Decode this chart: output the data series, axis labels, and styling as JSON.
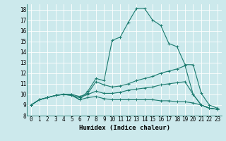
{
  "xlabel": "Humidex (Indice chaleur)",
  "bg_color": "#cce9ec",
  "grid_color": "#ffffff",
  "line_color": "#1a7a6e",
  "xlim": [
    -0.5,
    23.5
  ],
  "ylim": [
    8,
    18.5
  ],
  "xticks": [
    0,
    1,
    2,
    3,
    4,
    5,
    6,
    7,
    8,
    9,
    10,
    11,
    12,
    13,
    14,
    15,
    16,
    17,
    18,
    19,
    20,
    21,
    22,
    23
  ],
  "yticks": [
    8,
    9,
    10,
    11,
    12,
    13,
    14,
    15,
    16,
    17,
    18
  ],
  "lines": [
    {
      "x": [
        0,
        1,
        2,
        3,
        4,
        5,
        6,
        7,
        8,
        9,
        10,
        11,
        12,
        13,
        14,
        15,
        16,
        17,
        18,
        19,
        20,
        21,
        22,
        23
      ],
      "y": [
        9.0,
        9.5,
        9.7,
        9.9,
        10.0,
        10.0,
        9.5,
        10.3,
        11.5,
        11.3,
        15.1,
        15.4,
        16.8,
        18.1,
        18.1,
        17.0,
        16.5,
        14.8,
        14.5,
        12.8,
        12.8,
        10.1,
        9.0,
        8.7
      ]
    },
    {
      "x": [
        0,
        1,
        2,
        3,
        4,
        5,
        6,
        7,
        8,
        9,
        10,
        11,
        12,
        13,
        14,
        15,
        16,
        17,
        18,
        19,
        20,
        21,
        22,
        23
      ],
      "y": [
        9.0,
        9.5,
        9.7,
        9.9,
        10.0,
        10.0,
        9.8,
        10.1,
        11.2,
        10.9,
        10.7,
        10.8,
        11.0,
        11.3,
        11.5,
        11.7,
        12.0,
        12.2,
        12.4,
        12.7,
        10.0,
        9.0,
        8.7,
        8.6
      ]
    },
    {
      "x": [
        0,
        1,
        2,
        3,
        4,
        5,
        6,
        7,
        8,
        9,
        10,
        11,
        12,
        13,
        14,
        15,
        16,
        17,
        18,
        19,
        20,
        21,
        22,
        23
      ],
      "y": [
        9.0,
        9.5,
        9.7,
        9.9,
        10.0,
        9.9,
        9.7,
        10.0,
        10.3,
        10.1,
        10.1,
        10.2,
        10.4,
        10.5,
        10.6,
        10.7,
        10.9,
        11.0,
        11.1,
        11.2,
        10.0,
        9.0,
        8.7,
        8.6
      ]
    },
    {
      "x": [
        0,
        1,
        2,
        3,
        4,
        5,
        6,
        7,
        8,
        9,
        10,
        11,
        12,
        13,
        14,
        15,
        16,
        17,
        18,
        19,
        20,
        21,
        22,
        23
      ],
      "y": [
        9.0,
        9.5,
        9.7,
        9.9,
        10.0,
        9.9,
        9.5,
        9.7,
        9.8,
        9.6,
        9.5,
        9.5,
        9.5,
        9.5,
        9.5,
        9.5,
        9.4,
        9.4,
        9.3,
        9.3,
        9.2,
        9.0,
        8.7,
        8.6
      ]
    }
  ],
  "marker": "+",
  "markersize": 3,
  "linewidth": 0.8,
  "xlabel_fontsize": 6.5,
  "tick_fontsize": 5.5
}
